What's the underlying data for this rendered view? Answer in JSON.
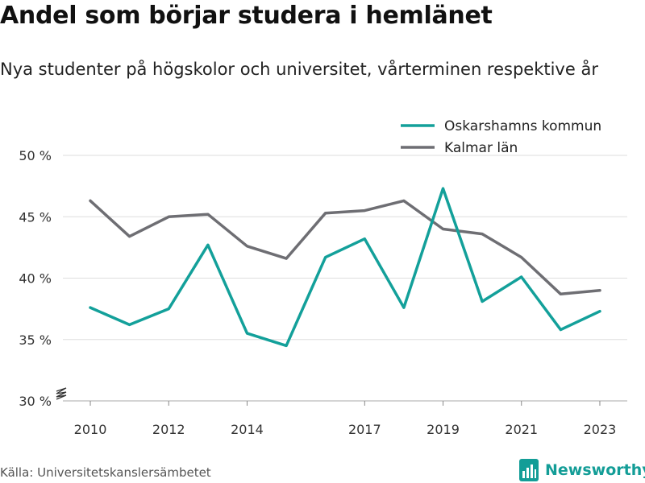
{
  "header": {
    "title": "Andel som börjar studera i hemlänet",
    "subtitle": "Nya studenter på högskolor och universitet, vårterminen respektive år"
  },
  "footer": {
    "source": "Källa: Universitetskanslersämbetet",
    "brand": "Newsworthy",
    "brand_color": "#139d97"
  },
  "chart_data": {
    "type": "line",
    "title": "Andel som börjar studera i hemlänet",
    "subtitle": "Nya studenter på högskolor och universitet, vårterminen respektive år",
    "xlabel": "",
    "ylabel": "",
    "x": [
      2010,
      2011,
      2012,
      2013,
      2014,
      2015,
      2016,
      2017,
      2018,
      2019,
      2020,
      2021,
      2022,
      2023
    ],
    "x_ticks": [
      2010,
      2012,
      2014,
      2017,
      2019,
      2021,
      2023
    ],
    "y_ticks": [
      30,
      35,
      40,
      45,
      50
    ],
    "y_tick_labels": [
      "30 %",
      "35 %",
      "40 %",
      "45 %",
      "50 %"
    ],
    "ylim": [
      30,
      50.5
    ],
    "xlim": [
      2009.3,
      2023.7
    ],
    "y_axis_break": true,
    "grid": true,
    "legend_position": "top-right",
    "series": [
      {
        "name": "Oskarshamns kommun",
        "color": "#13a09a",
        "values": [
          37.6,
          36.2,
          37.5,
          42.7,
          35.5,
          34.5,
          41.7,
          43.2,
          37.6,
          47.3,
          38.1,
          40.1,
          35.8,
          37.3
        ]
      },
      {
        "name": "Kalmar län",
        "color": "#6e6e73",
        "values": [
          46.3,
          43.4,
          45.0,
          45.2,
          42.6,
          41.6,
          45.3,
          45.5,
          46.3,
          44.0,
          43.6,
          41.7,
          38.7,
          39.0
        ]
      }
    ]
  }
}
